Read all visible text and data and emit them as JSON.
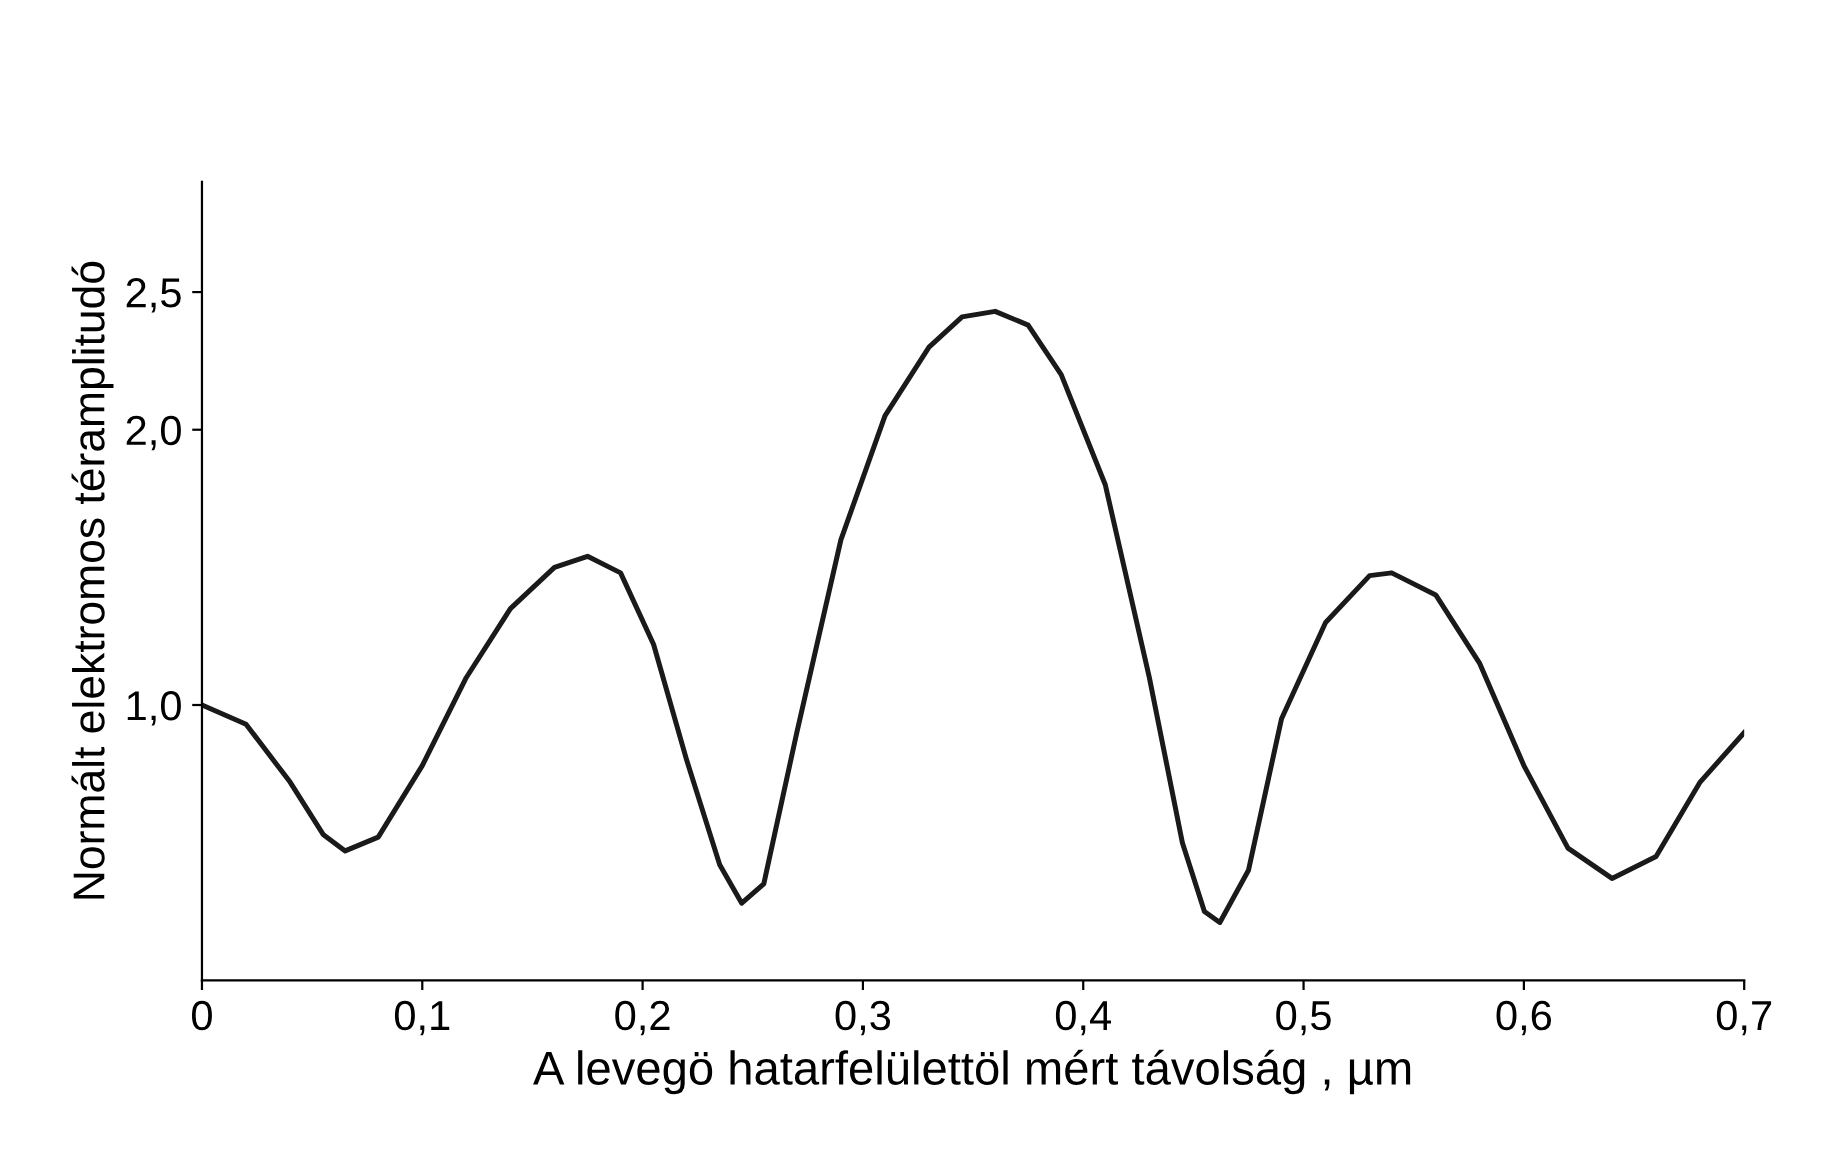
{
  "chart_data": {
    "type": "line",
    "xlabel": "A levegö hatarfelülettöl mért távolság , µm",
    "ylabel": "Normált elektromos téramplitudó",
    "x": [
      0,
      0.02,
      0.04,
      0.055,
      0.065,
      0.08,
      0.1,
      0.12,
      0.14,
      0.16,
      0.175,
      0.19,
      0.205,
      0.22,
      0.235,
      0.245,
      0.255,
      0.27,
      0.29,
      0.31,
      0.33,
      0.345,
      0.36,
      0.375,
      0.39,
      0.41,
      0.43,
      0.445,
      0.455,
      0.462,
      0.475,
      0.49,
      0.51,
      0.53,
      0.54,
      0.56,
      0.58,
      0.6,
      0.62,
      0.64,
      0.66,
      0.68,
      0.7
    ],
    "series": [
      {
        "color": "#1a1a1a",
        "values": [
          1.0,
          0.93,
          0.72,
          0.53,
          0.47,
          0.52,
          0.78,
          1.1,
          1.35,
          1.5,
          1.54,
          1.48,
          1.22,
          0.8,
          0.42,
          0.28,
          0.35,
          0.9,
          1.6,
          2.05,
          2.3,
          2.41,
          2.43,
          2.38,
          2.2,
          1.8,
          1.1,
          0.5,
          0.25,
          0.21,
          0.4,
          0.95,
          1.3,
          1.47,
          1.48,
          1.4,
          1.15,
          0.78,
          0.48,
          0.37,
          0.45,
          0.72,
          0.9
        ]
      }
    ],
    "xlim": [
      0,
      0.7
    ],
    "ylim": [
      0,
      2.9
    ],
    "xticks": [
      0,
      {
        "value": 0.1,
        "label": "0,1"
      },
      {
        "value": 0.2,
        "label": "0,2"
      },
      {
        "value": 0.3,
        "label": "0,3"
      },
      {
        "value": 0.4,
        "label": "0,4"
      },
      {
        "value": 0.5,
        "label": "0,5"
      },
      {
        "value": 0.6,
        "label": "0,6"
      },
      {
        "value": 0.7,
        "label": "0,7"
      }
    ],
    "yticks": [
      {
        "value": 1.0,
        "label": "1,0"
      },
      {
        "value": 2.0,
        "label": "2,0"
      },
      {
        "value": 2.5,
        "label": "2,5"
      }
    ],
    "grid": false,
    "legend": false,
    "marker": "none",
    "line_style": "solid"
  }
}
